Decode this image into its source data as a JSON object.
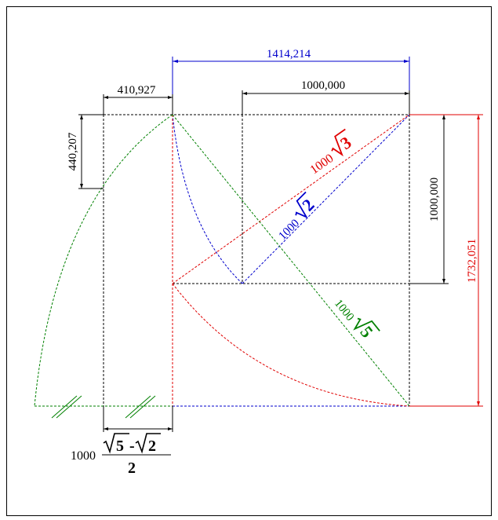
{
  "labels": {
    "top_width": "1414,214",
    "left_offset": "410,927",
    "top_square": "1000,000",
    "left_height": "440,207",
    "right_square": "1000,000",
    "right_total": "1732,051",
    "sqrt3_coef": "1000",
    "sqrt3_radicand": "3",
    "sqrt2_coef": "1000",
    "sqrt2_radicand": "2",
    "sqrt5_coef": "1000",
    "sqrt5_radicand": "5",
    "bottom_coef": "1000",
    "bottom_num_a": "5",
    "bottom_minus": "-",
    "bottom_num_b": "2",
    "bottom_den": "2"
  },
  "colors": {
    "black": "#000000",
    "blue": "#0000cc",
    "red": "#e00000",
    "green": "#008000"
  }
}
